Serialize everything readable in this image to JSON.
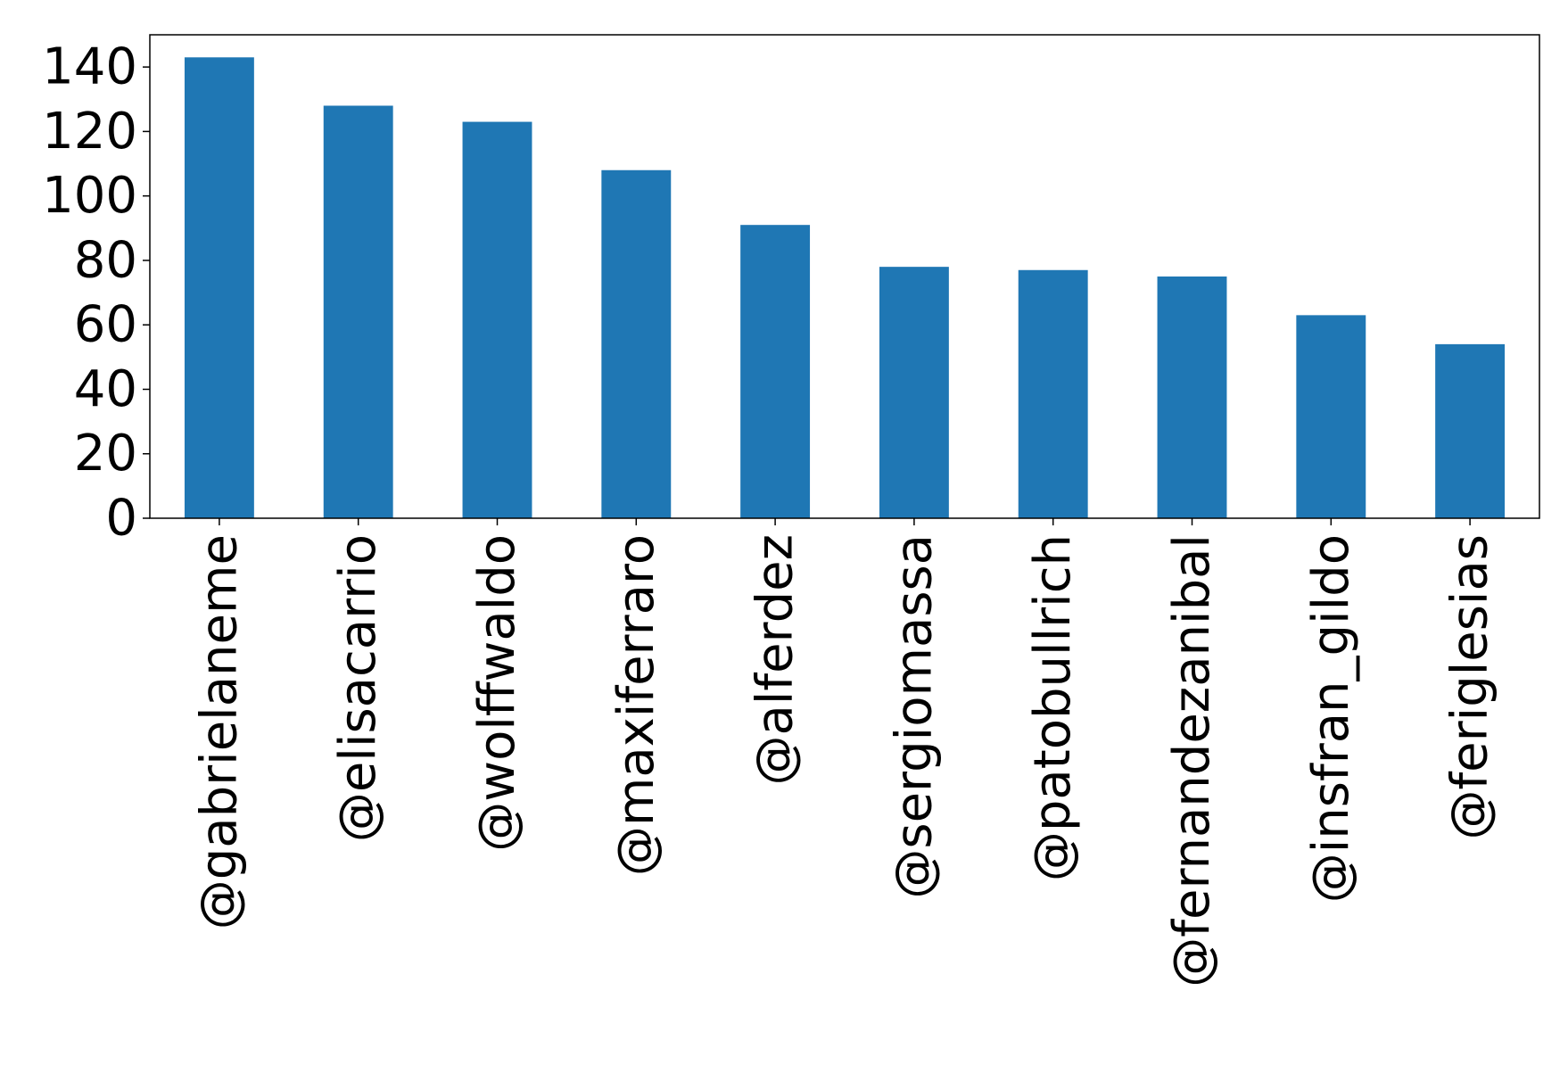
{
  "chart_data": {
    "type": "bar",
    "title": "",
    "xlabel": "",
    "ylabel": "",
    "categories": [
      "@gabrielaneme",
      "@elisacarrio",
      "@wolffwaldo",
      "@maxiferraro",
      "@alferdez",
      "@sergiomassa",
      "@patobullrich",
      "@fernandezanibal",
      "@insfran_gildo",
      "@feriglesias"
    ],
    "values": [
      143,
      128,
      123,
      108,
      91,
      78,
      77,
      75,
      63,
      54
    ],
    "ylim": [
      0,
      150
    ],
    "yticks": [
      0,
      20,
      40,
      60,
      80,
      100,
      120,
      140
    ],
    "ytick_labels": [
      "0",
      "20",
      "40",
      "60",
      "80",
      "100",
      "120",
      "140"
    ],
    "grid": false,
    "legend": "none",
    "bar_color": "#1f77b4",
    "category_label_rotation": "vertical"
  }
}
